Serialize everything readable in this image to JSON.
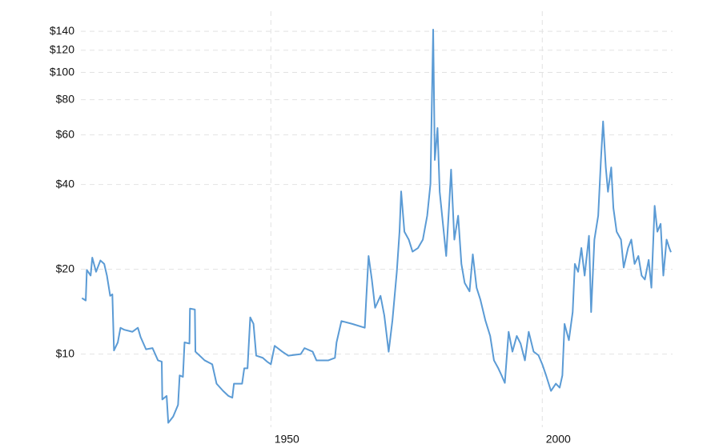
{
  "chart_data": {
    "type": "line",
    "log": true,
    "grid": true,
    "color": "#5b9bd5",
    "xlim": [
      1915,
      2024
    ],
    "xticks": [
      1950,
      2000
    ],
    "ylim": [
      5.5,
      165
    ],
    "yticks": [
      {
        "value": 10,
        "label": "$10"
      },
      {
        "value": 20,
        "label": "$20"
      },
      {
        "value": 40,
        "label": "$40"
      },
      {
        "value": 60,
        "label": "$60"
      },
      {
        "value": 80,
        "label": "$80"
      },
      {
        "value": 100,
        "label": "$100"
      },
      {
        "value": 120,
        "label": "$120"
      },
      {
        "value": 140,
        "label": "$140"
      }
    ],
    "x": [
      1915.2,
      1915.9,
      1916.1,
      1916.8,
      1917.1,
      1917.8,
      1918.6,
      1919.3,
      1919.8,
      1920.4,
      1920.8,
      1921.1,
      1921.8,
      1922.3,
      1923.0,
      1924.5,
      1925.5,
      1926.0,
      1927.0,
      1928.2,
      1929.2,
      1929.9,
      1930.0,
      1930.8,
      1931.1,
      1932.0,
      1932.9,
      1933.2,
      1933.8,
      1934.1,
      1935.0,
      1935.1,
      1936.0,
      1936.1,
      1937.8,
      1939.2,
      1940.0,
      1941.2,
      1942.2,
      1942.9,
      1943.2,
      1944.7,
      1945.1,
      1945.7,
      1946.2,
      1946.8,
      1947.3,
      1948.5,
      1949.3,
      1950.0,
      1950.7,
      1952.1,
      1953.2,
      1955.5,
      1956.2,
      1957.7,
      1958.4,
      1960.6,
      1961.8,
      1962.1,
      1963.0,
      1965.0,
      1967.3,
      1967.6,
      1968.0,
      1968.6,
      1969.2,
      1970.2,
      1970.9,
      1971.7,
      1972.4,
      1973.2,
      1973.7,
      1974.0,
      1974.6,
      1975.4,
      1976.1,
      1977.1,
      1978.0,
      1978.8,
      1979.4,
      1979.6,
      1979.9,
      1980.2,
      1980.7,
      1981.1,
      1981.7,
      1982.3,
      1982.9,
      1983.2,
      1983.8,
      1984.5,
      1985.1,
      1985.7,
      1986.6,
      1987.2,
      1987.9,
      1988.6,
      1989.5,
      1990.4,
      1991.1,
      1991.9,
      1992.5,
      1993.1,
      1993.8,
      1994.5,
      1995.3,
      1996.0,
      1996.8,
      1997.5,
      1998.4,
      1999.3,
      2000.0,
      2000.7,
      2001.6,
      2002.5,
      2003.2,
      2003.7,
      2004.1,
      2004.9,
      2005.6,
      2006.0,
      2006.6,
      2007.2,
      2007.8,
      2008.6,
      2009.0,
      2009.6,
      2010.3,
      2010.8,
      2011.2,
      2011.7,
      2012.1,
      2012.7,
      2013.1,
      2013.7,
      2014.5,
      2015.0,
      2015.8,
      2016.4,
      2017.0,
      2017.7,
      2018.3,
      2018.9,
      2019.6,
      2020.1,
      2020.7,
      2021.2,
      2021.8,
      2022.3,
      2022.9,
      2023.4,
      2023.7
    ],
    "values": [
      15.8,
      15.5,
      19.9,
      19.0,
      22.0,
      19.6,
      21.5,
      20.9,
      19.0,
      16.1,
      16.3,
      10.3,
      11.0,
      12.4,
      12.2,
      12.0,
      12.4,
      11.5,
      10.4,
      10.5,
      9.5,
      9.4,
      6.9,
      7.1,
      5.7,
      6.0,
      6.6,
      8.4,
      8.3,
      11.0,
      10.9,
      14.5,
      14.4,
      10.2,
      9.5,
      9.2,
      7.85,
      7.4,
      7.1,
      7.0,
      7.85,
      7.85,
      8.9,
      8.9,
      13.5,
      12.8,
      9.87,
      9.7,
      9.4,
      9.2,
      10.7,
      10.2,
      9.87,
      10.0,
      10.5,
      10.2,
      9.5,
      9.5,
      9.7,
      11.0,
      13.1,
      12.8,
      12.4,
      16.1,
      22.3,
      18.4,
      14.6,
      16.1,
      13.7,
      10.2,
      13.2,
      19.6,
      27.2,
      37.8,
      27.2,
      25.5,
      23.1,
      23.8,
      25.5,
      31.0,
      40.2,
      67.8,
      142,
      48.9,
      63.5,
      37.7,
      29.0,
      22.3,
      35.3,
      45.2,
      25.5,
      31.0,
      20.9,
      17.9,
      16.7,
      22.6,
      17.2,
      15.6,
      13.2,
      11.6,
      9.5,
      8.9,
      8.4,
      7.9,
      12.0,
      10.2,
      11.6,
      10.9,
      9.5,
      12.0,
      10.2,
      9.9,
      9.2,
      8.4,
      7.4,
      7.85,
      7.6,
      8.4,
      12.8,
      11.2,
      14.1,
      20.9,
      19.6,
      23.8,
      19.0,
      26.3,
      14.1,
      25.5,
      31.0,
      48.9,
      67.0,
      46.0,
      37.7,
      46.0,
      33.0,
      27.2,
      25.5,
      20.3,
      23.8,
      25.5,
      20.9,
      22.3,
      19.0,
      18.4,
      21.6,
      17.2,
      33.6,
      27.2,
      29.0,
      19.0,
      25.5,
      23.8,
      23.0
    ]
  }
}
